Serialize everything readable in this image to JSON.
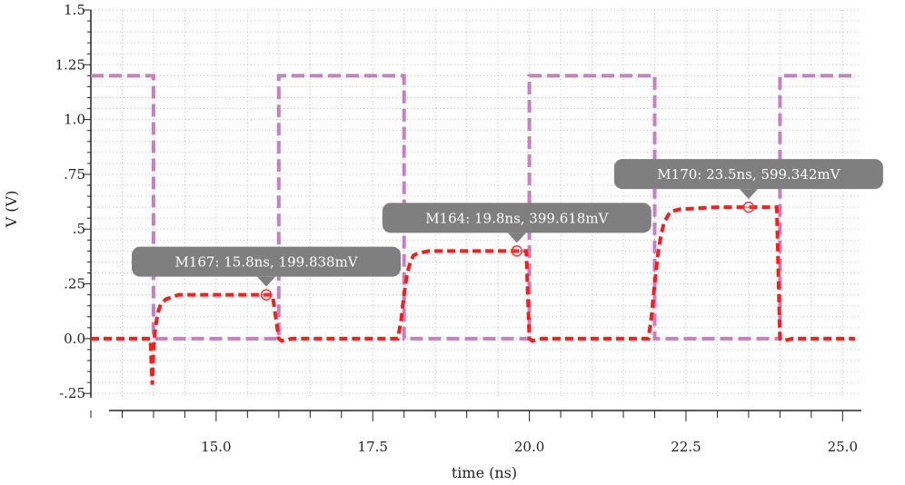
{
  "chart_data": {
    "type": "line",
    "title": "",
    "xlabel": "time (ns)",
    "ylabel": "V (V)",
    "xlim": [
      13.0,
      25.3
    ],
    "ylim": [
      -0.27,
      1.5
    ],
    "grid": true,
    "x_ticks": [
      {
        "value": 15.0,
        "label": "15.0"
      },
      {
        "value": 17.5,
        "label": "17.5"
      },
      {
        "value": 20.0,
        "label": "20.0"
      },
      {
        "value": 22.5,
        "label": "22.5"
      },
      {
        "value": 25.0,
        "label": "25.0"
      }
    ],
    "y_ticks": [
      {
        "value": 1.5,
        "label": "1.5"
      },
      {
        "value": 1.25,
        "label": "1.25"
      },
      {
        "value": 1.0,
        "label": "1.0"
      },
      {
        "value": 0.75,
        "label": ".75"
      },
      {
        "value": 0.5,
        "label": ".5"
      },
      {
        "value": 0.25,
        "label": ".25"
      },
      {
        "value": 0.0,
        "label": "0.0"
      },
      {
        "value": -0.25,
        "label": "-.25"
      }
    ],
    "series": [
      {
        "color": "#c77fc4",
        "style": "dashed",
        "x": [
          13.0,
          14.0,
          14.0,
          16.0,
          16.0,
          18.0,
          18.0,
          20.0,
          20.0,
          22.0,
          22.0,
          24.0,
          24.0,
          25.2
        ],
        "y": [
          1.2,
          1.2,
          0.0,
          0.0,
          1.2,
          1.2,
          0.0,
          0.0,
          1.2,
          1.2,
          0.0,
          0.0,
          1.2,
          1.2
        ]
      },
      {
        "color": "#ff1a1a",
        "style": "dashed",
        "x": [
          13.0,
          13.95,
          13.98,
          14.0,
          14.03,
          14.07,
          14.12,
          14.2,
          14.4,
          15.0,
          15.9,
          15.95,
          16.0,
          16.05,
          16.2,
          17.9,
          17.95,
          18.0,
          18.05,
          18.1,
          18.15,
          18.22,
          18.4,
          19.0,
          19.95,
          20.0,
          20.05,
          20.2,
          21.9,
          21.95,
          22.0,
          22.05,
          22.1,
          22.15,
          22.25,
          22.4,
          23.0,
          23.95,
          24.0,
          24.05,
          24.2,
          25.2
        ],
        "y": [
          0.0,
          0.0,
          -0.21,
          -0.05,
          0.05,
          0.12,
          0.16,
          0.18,
          0.2,
          0.2,
          0.2,
          0.1,
          0.0,
          -0.01,
          0.0,
          0.0,
          0.08,
          0.2,
          0.3,
          0.35,
          0.38,
          0.39,
          0.4,
          0.4,
          0.4,
          0.0,
          -0.01,
          0.0,
          0.0,
          0.1,
          0.25,
          0.38,
          0.47,
          0.53,
          0.58,
          0.59,
          0.6,
          0.6,
          0.0,
          -0.01,
          0.0,
          0.0
        ]
      }
    ],
    "markers": [
      {
        "label": "M167: 15.8ns, 199.838mV",
        "x": 15.8,
        "y": 0.2
      },
      {
        "label": "M164: 19.8ns, 399.618mV",
        "x": 19.8,
        "y": 0.4
      },
      {
        "label": "M170: 23.5ns, 599.342mV",
        "x": 23.5,
        "y": 0.6
      }
    ]
  }
}
